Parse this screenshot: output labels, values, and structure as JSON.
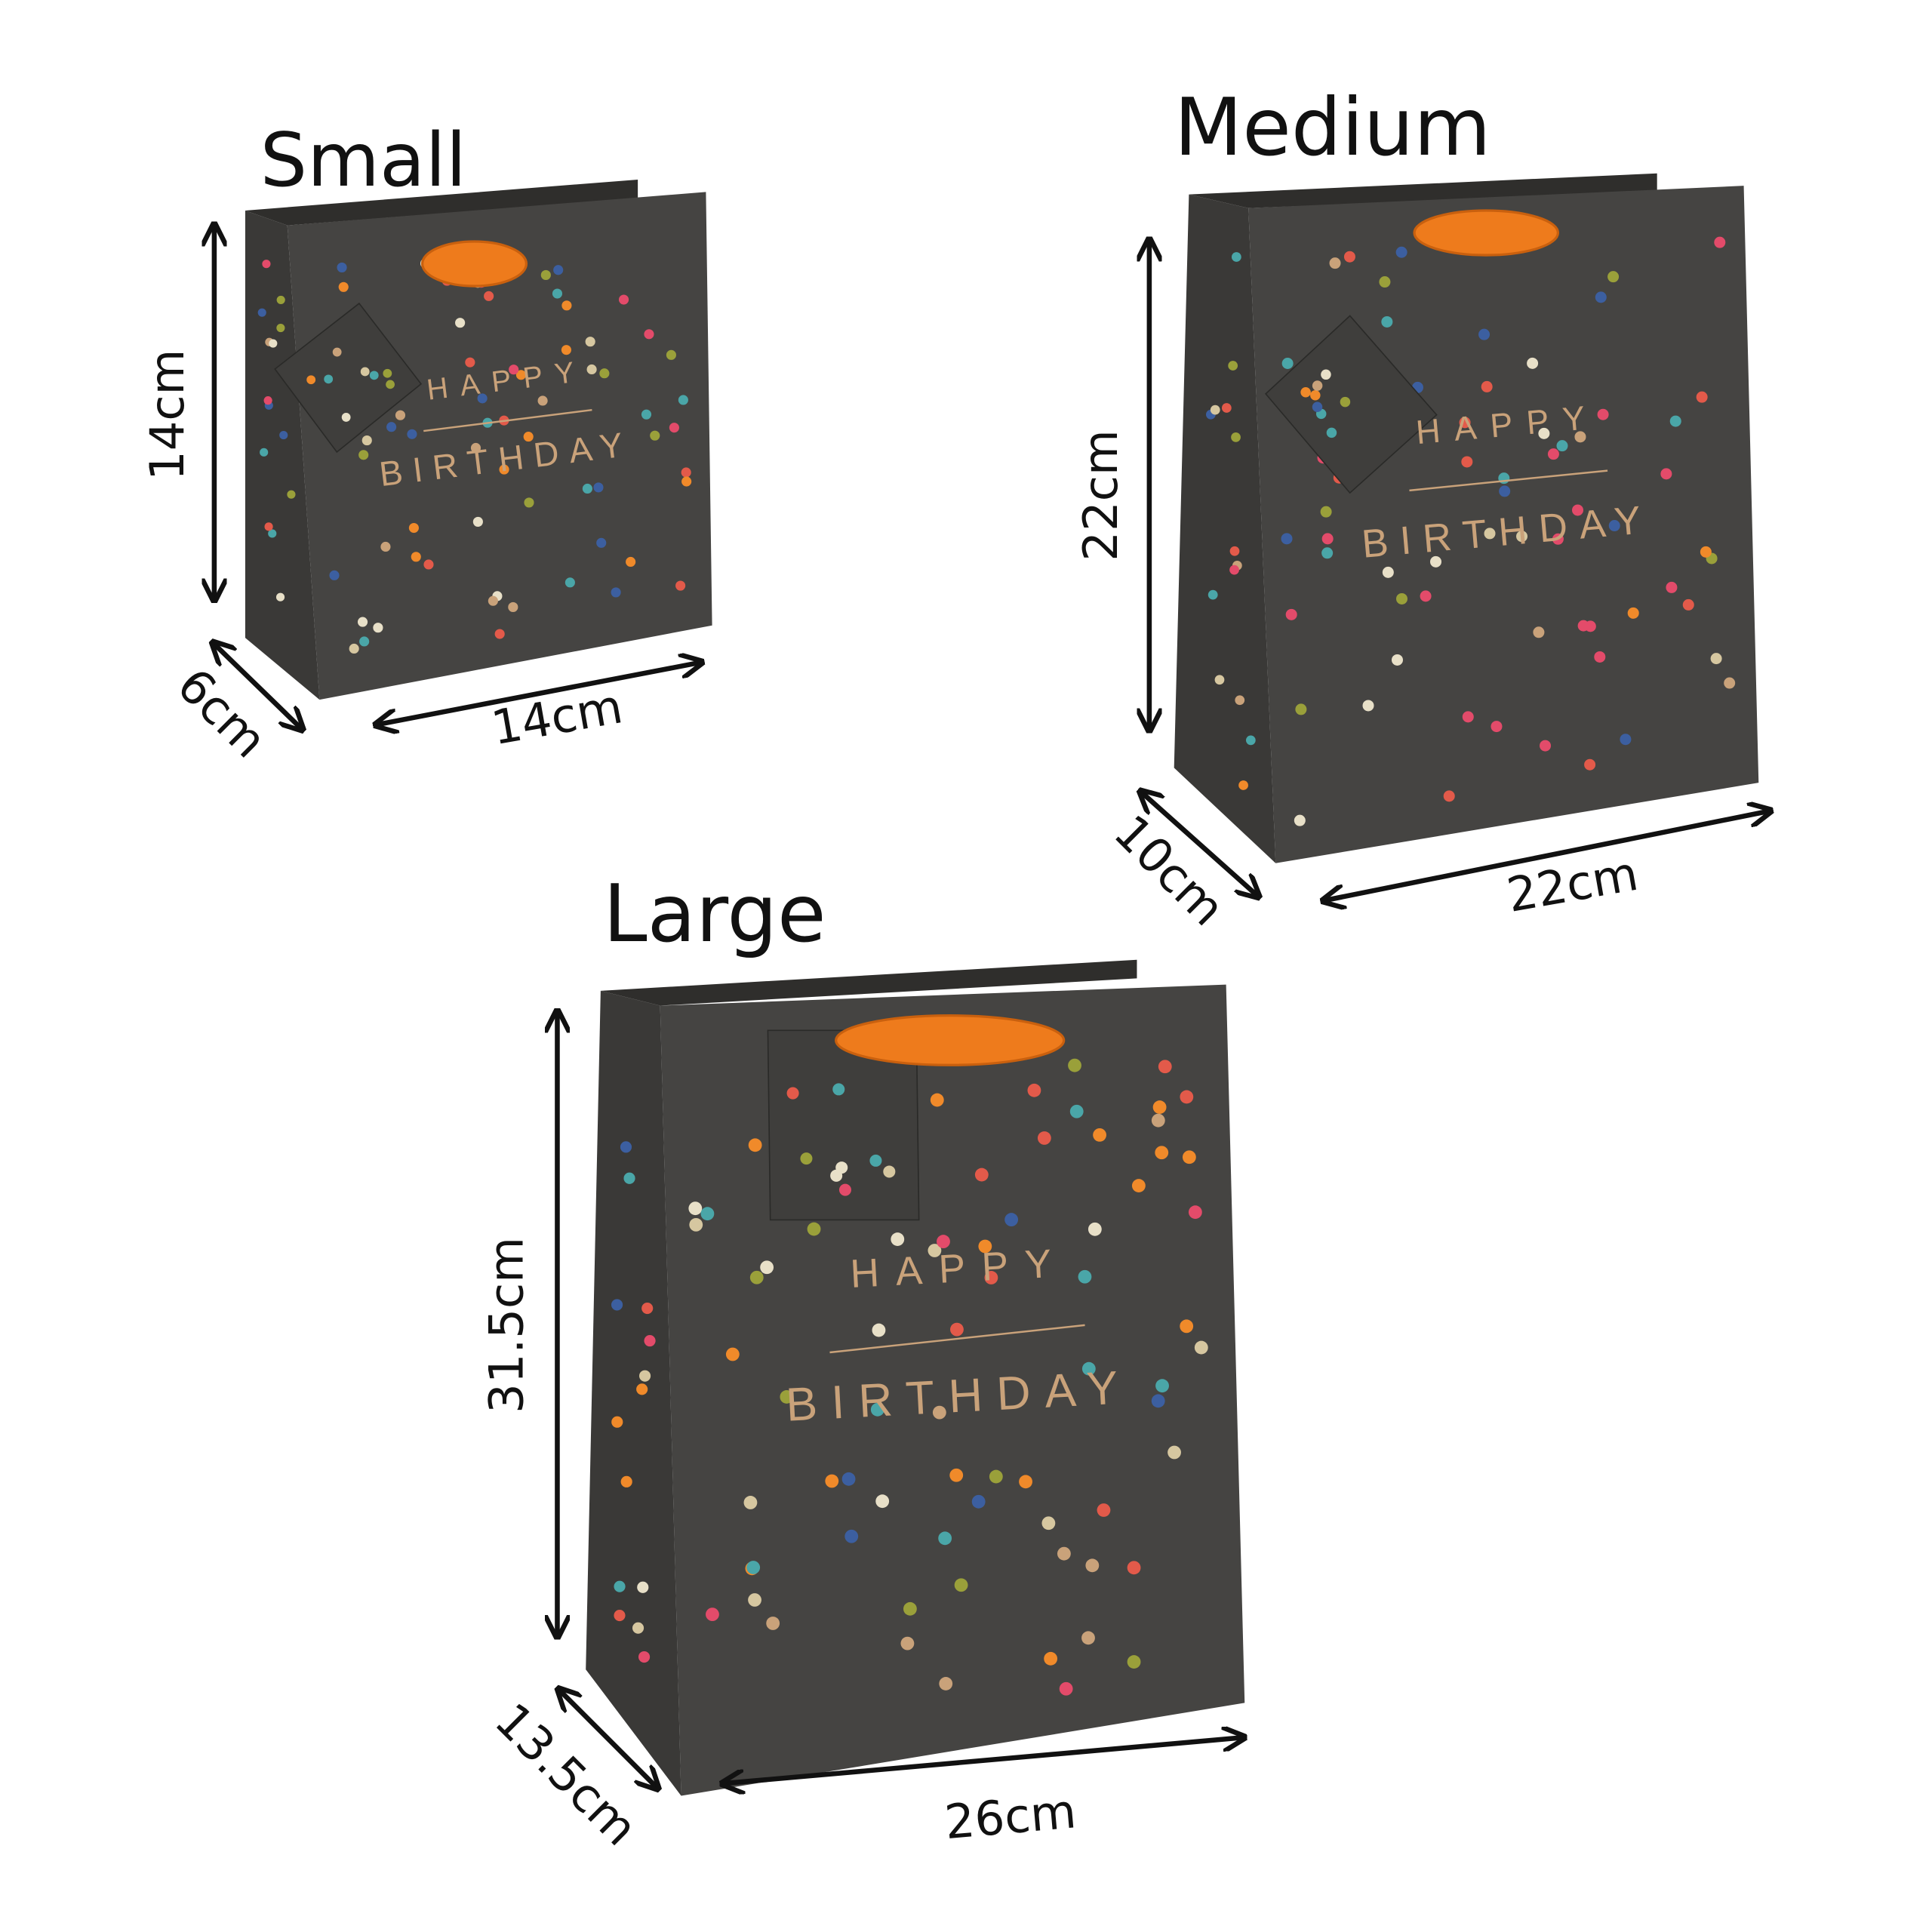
{
  "bags": [
    {
      "name": "Small",
      "height": "14cm",
      "depth": "6cm",
      "width": "14cm",
      "greeting": {
        "line1": "HAPPY",
        "line2": "BIRTHDAY"
      }
    },
    {
      "name": "Medium",
      "height": "22cm",
      "depth": "10cm",
      "width": "22cm",
      "greeting": {
        "line1": "HAPPY",
        "line2": "BIRTHDAY"
      }
    },
    {
      "name": "Large",
      "height": "31.5cm",
      "depth": "13.5cm",
      "width": "26cm",
      "greeting": {
        "line1": "HAPPY",
        "line2": "BIRTHDAY"
      }
    }
  ]
}
